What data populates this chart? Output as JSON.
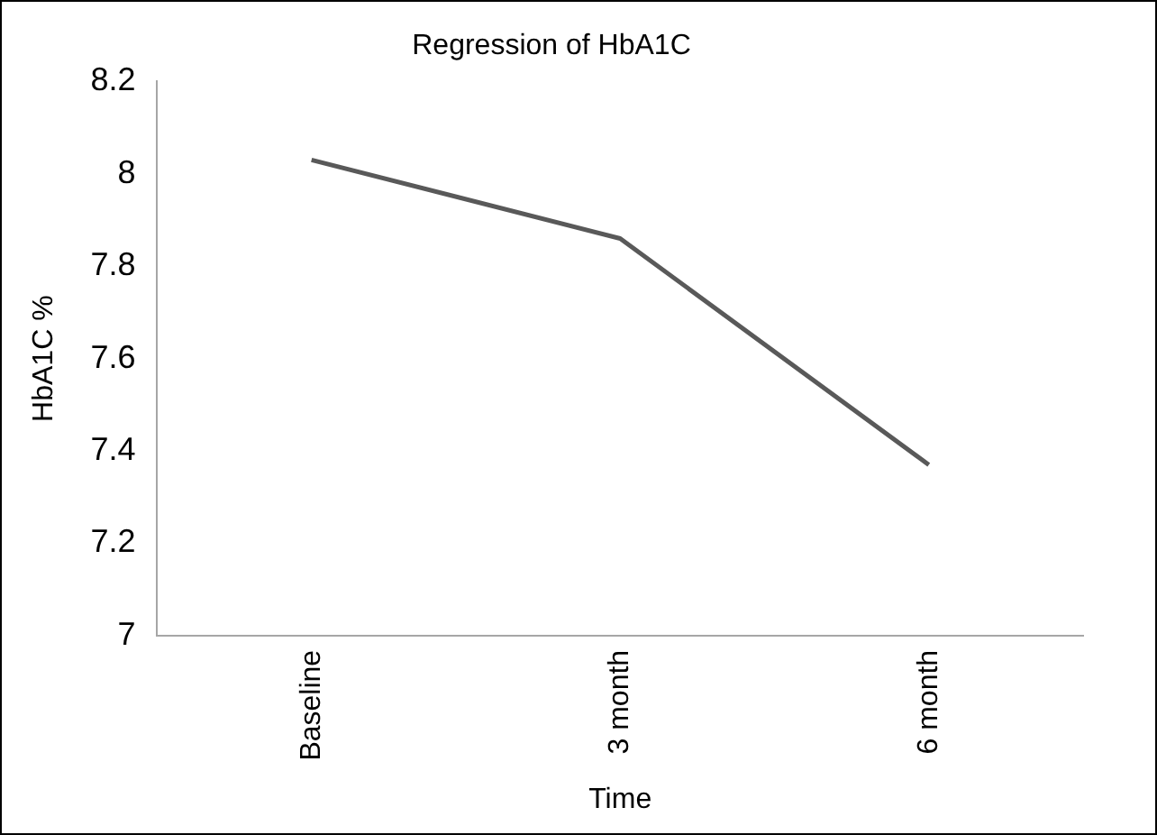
{
  "chart_data": {
    "type": "line",
    "title": "Regression of HbA1C",
    "xlabel": "Time",
    "ylabel": "HbA1C %",
    "categories": [
      "Baseline",
      "3 month",
      "6 month"
    ],
    "series": [
      {
        "color": "#595959",
        "values": [
          8.03,
          7.86,
          7.37
        ]
      }
    ],
    "ylim": [
      7,
      8.2
    ],
    "yticks": [
      7,
      7.2,
      7.4,
      7.6,
      7.8,
      8,
      8.2
    ],
    "grid": false,
    "legend": false,
    "marker": "none"
  }
}
